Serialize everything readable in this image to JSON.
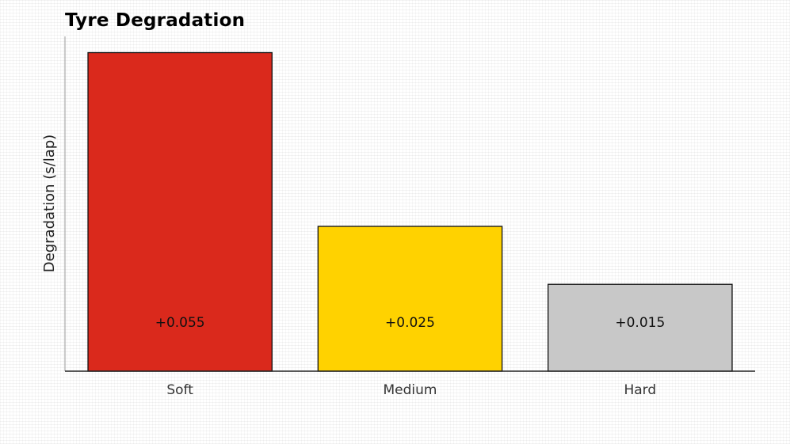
{
  "chart_data": {
    "type": "bar",
    "title": "Tyre Degradation",
    "xlabel": "",
    "ylabel": "Degradation (s/lap)",
    "categories": [
      "Soft",
      "Medium",
      "Hard"
    ],
    "values": [
      0.055,
      0.025,
      0.015
    ],
    "value_labels": [
      "+0.055",
      "+0.025",
      "+0.015"
    ],
    "colors": [
      "#da291c",
      "#ffd200",
      "#c8c8c8"
    ],
    "ylim": [
      0,
      0.0578
    ],
    "grid": false,
    "legend": "none"
  }
}
